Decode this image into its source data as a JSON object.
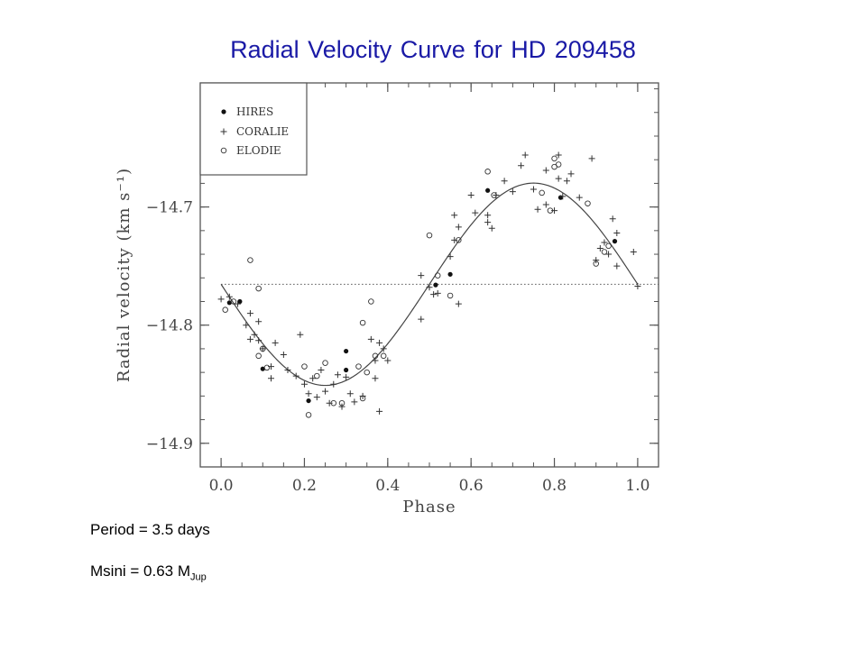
{
  "slide": {
    "title": "Radial Velocity Curve for HD 209458",
    "period_text": "Period = 3.5 days",
    "msini_text": "Msini = 0.63 M",
    "msini_subscript": "Jup"
  },
  "chart_data": {
    "type": "scatter",
    "xlabel": "Phase",
    "ylabel": "Radial velocity (km s⁻¹)",
    "xlim": [
      -0.05,
      1.05
    ],
    "ylim": [
      -14.92,
      -14.595
    ],
    "xticks": [
      0.0,
      0.2,
      0.4,
      0.6,
      0.8,
      1.0
    ],
    "xtick_labels": [
      "0.0",
      "0.2",
      "0.4",
      "0.6",
      "0.8",
      "1.0"
    ],
    "yticks": [
      -14.7,
      -14.8,
      -14.9
    ],
    "ytick_labels": [
      "−14.7",
      "−14.8",
      "−14.9"
    ],
    "grid": false,
    "legend_position": "top-left",
    "mean_velocity": -14.7654,
    "fit": {
      "type": "sinusoid",
      "amplitude": 0.0856,
      "offset": -14.7654,
      "phase_of_minimum": 0.25
    },
    "series": [
      {
        "name": "HIRES",
        "marker": "filled-circle",
        "points": [
          [
            0.02,
            -14.781
          ],
          [
            0.045,
            -14.78
          ],
          [
            0.1,
            -14.837
          ],
          [
            0.21,
            -14.864
          ],
          [
            0.3,
            -14.822
          ],
          [
            0.3,
            -14.838
          ],
          [
            0.515,
            -14.766
          ],
          [
            0.55,
            -14.757
          ],
          [
            0.64,
            -14.686
          ],
          [
            0.815,
            -14.692
          ],
          [
            0.945,
            -14.729
          ]
        ]
      },
      {
        "name": "CORALIE",
        "marker": "plus",
        "points": [
          [
            0.0,
            -14.778
          ],
          [
            0.02,
            -14.776
          ],
          [
            0.04,
            -14.782
          ],
          [
            0.06,
            -14.8
          ],
          [
            0.07,
            -14.79
          ],
          [
            0.07,
            -14.812
          ],
          [
            0.08,
            -14.808
          ],
          [
            0.09,
            -14.797
          ],
          [
            0.09,
            -14.813
          ],
          [
            0.1,
            -14.82
          ],
          [
            0.12,
            -14.835
          ],
          [
            0.12,
            -14.845
          ],
          [
            0.13,
            -14.815
          ],
          [
            0.15,
            -14.825
          ],
          [
            0.16,
            -14.838
          ],
          [
            0.18,
            -14.843
          ],
          [
            0.19,
            -14.808
          ],
          [
            0.2,
            -14.85
          ],
          [
            0.21,
            -14.858
          ],
          [
            0.22,
            -14.845
          ],
          [
            0.23,
            -14.861
          ],
          [
            0.24,
            -14.838
          ],
          [
            0.25,
            -14.856
          ],
          [
            0.26,
            -14.866
          ],
          [
            0.27,
            -14.85
          ],
          [
            0.28,
            -14.842
          ],
          [
            0.29,
            -14.869
          ],
          [
            0.3,
            -14.844
          ],
          [
            0.31,
            -14.858
          ],
          [
            0.32,
            -14.865
          ],
          [
            0.34,
            -14.86
          ],
          [
            0.36,
            -14.812
          ],
          [
            0.37,
            -14.83
          ],
          [
            0.37,
            -14.845
          ],
          [
            0.38,
            -14.815
          ],
          [
            0.38,
            -14.873
          ],
          [
            0.39,
            -14.82
          ],
          [
            0.4,
            -14.83
          ],
          [
            0.48,
            -14.758
          ],
          [
            0.48,
            -14.795
          ],
          [
            0.5,
            -14.768
          ],
          [
            0.51,
            -14.774
          ],
          [
            0.52,
            -14.773
          ],
          [
            0.55,
            -14.742
          ],
          [
            0.56,
            -14.707
          ],
          [
            0.56,
            -14.728
          ],
          [
            0.57,
            -14.717
          ],
          [
            0.57,
            -14.782
          ],
          [
            0.6,
            -14.69
          ],
          [
            0.61,
            -14.705
          ],
          [
            0.64,
            -14.707
          ],
          [
            0.64,
            -14.713
          ],
          [
            0.65,
            -14.718
          ],
          [
            0.66,
            -14.69
          ],
          [
            0.68,
            -14.678
          ],
          [
            0.7,
            -14.687
          ],
          [
            0.72,
            -14.665
          ],
          [
            0.73,
            -14.656
          ],
          [
            0.75,
            -14.685
          ],
          [
            0.76,
            -14.702
          ],
          [
            0.78,
            -14.698
          ],
          [
            0.78,
            -14.669
          ],
          [
            0.8,
            -14.703
          ],
          [
            0.81,
            -14.676
          ],
          [
            0.81,
            -14.656
          ],
          [
            0.82,
            -14.691
          ],
          [
            0.83,
            -14.678
          ],
          [
            0.84,
            -14.672
          ],
          [
            0.86,
            -14.692
          ],
          [
            0.89,
            -14.659
          ],
          [
            0.9,
            -14.745
          ],
          [
            0.91,
            -14.735
          ],
          [
            0.92,
            -14.73
          ],
          [
            0.93,
            -14.74
          ],
          [
            0.94,
            -14.71
          ],
          [
            0.95,
            -14.722
          ],
          [
            0.95,
            -14.75
          ],
          [
            0.99,
            -14.738
          ],
          [
            1.0,
            -14.767
          ]
        ]
      },
      {
        "name": "ELODIE",
        "marker": "open-circle",
        "points": [
          [
            0.01,
            -14.787
          ],
          [
            0.03,
            -14.78
          ],
          [
            0.07,
            -14.745
          ],
          [
            0.09,
            -14.769
          ],
          [
            0.09,
            -14.826
          ],
          [
            0.1,
            -14.82
          ],
          [
            0.11,
            -14.836
          ],
          [
            0.2,
            -14.835
          ],
          [
            0.21,
            -14.876
          ],
          [
            0.23,
            -14.843
          ],
          [
            0.25,
            -14.832
          ],
          [
            0.27,
            -14.866
          ],
          [
            0.29,
            -14.866
          ],
          [
            0.33,
            -14.835
          ],
          [
            0.34,
            -14.862
          ],
          [
            0.34,
            -14.798
          ],
          [
            0.35,
            -14.84
          ],
          [
            0.36,
            -14.78
          ],
          [
            0.37,
            -14.826
          ],
          [
            0.39,
            -14.826
          ],
          [
            0.5,
            -14.724
          ],
          [
            0.52,
            -14.758
          ],
          [
            0.55,
            -14.775
          ],
          [
            0.57,
            -14.728
          ],
          [
            0.64,
            -14.67
          ],
          [
            0.655,
            -14.69
          ],
          [
            0.8,
            -14.659
          ],
          [
            0.8,
            -14.666
          ],
          [
            0.81,
            -14.664
          ],
          [
            0.77,
            -14.688
          ],
          [
            0.79,
            -14.703
          ],
          [
            0.88,
            -14.697
          ],
          [
            0.9,
            -14.748
          ],
          [
            0.92,
            -14.738
          ],
          [
            0.93,
            -14.733
          ]
        ]
      }
    ]
  }
}
